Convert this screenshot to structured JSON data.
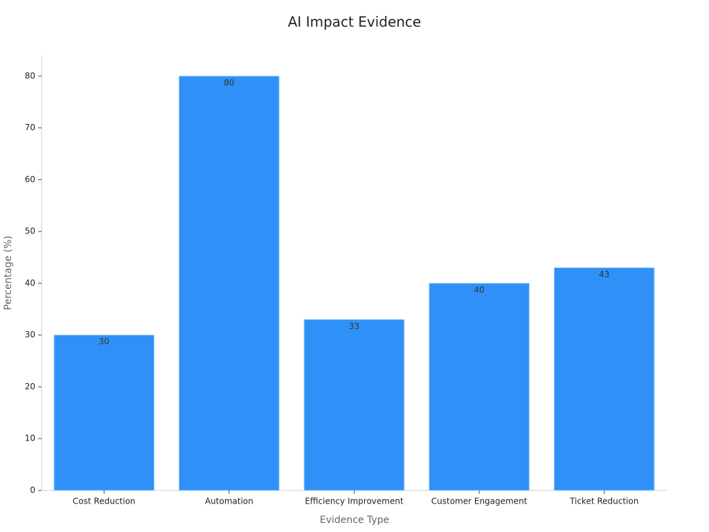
{
  "chart_data": {
    "type": "bar",
    "title": "AI Impact Evidence",
    "x_label": "Evidence Type",
    "y_label": "Percentage (%)",
    "categories": [
      "Cost Reduction",
      "Automation",
      "Efficiency Improvement",
      "Customer Engagement",
      "Ticket Reduction"
    ],
    "values": [
      30,
      80,
      33,
      40,
      43
    ],
    "color": "#2f91f7",
    "ylim": [
      0,
      84
    ],
    "yticks": [
      0,
      10,
      20,
      30,
      40,
      50,
      60,
      70,
      80
    ],
    "grid": false
  }
}
